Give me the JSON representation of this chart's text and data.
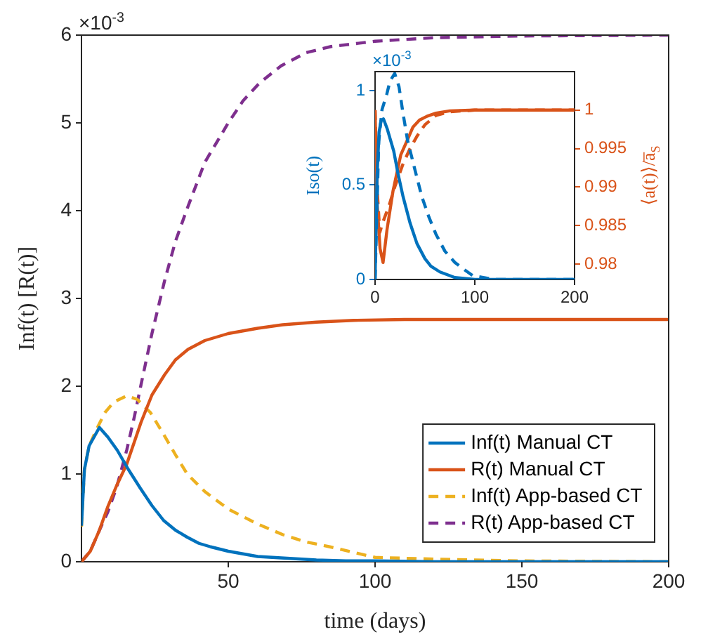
{
  "chart_data": [
    {
      "type": "line",
      "xlabel": "time (days)",
      "ylabel": "Inf(t) [R(t)]",
      "annotations": [
        "×10$^{-3}$"
      ],
      "xlim": [
        0,
        200
      ],
      "ylim": [
        0,
        6
      ],
      "xticks": [
        50,
        100,
        150,
        200
      ],
      "yticks": [
        0,
        1,
        2,
        3,
        4,
        5,
        6
      ],
      "grid": false,
      "legend": "bottom right",
      "series": [
        {
          "name": "Inf(t) Manual CT",
          "color": "#0072bd",
          "line_style": "solid",
          "x": [
            0,
            1,
            2.6,
            6.1,
            9,
            12.2,
            16,
            20,
            24,
            28,
            32,
            36,
            40,
            44,
            50,
            60,
            70,
            80,
            90,
            100,
            120,
            150,
            200
          ],
          "values": [
            0.41,
            1.05,
            1.32,
            1.53,
            1.42,
            1.27,
            1.05,
            0.84,
            0.64,
            0.47,
            0.36,
            0.28,
            0.21,
            0.17,
            0.12,
            0.06,
            0.04,
            0.02,
            0.01,
            0.01,
            0,
            0,
            0
          ]
        },
        {
          "name": "R(t) Manual CT",
          "color": "#d95319",
          "line_style": "solid",
          "x": [
            0,
            3,
            6,
            9,
            12,
            15.4,
            20.3,
            24,
            28.3,
            32,
            36.3,
            42,
            50,
            60,
            68.5,
            80,
            92.6,
            110,
            150,
            200
          ],
          "values": [
            0,
            0.12,
            0.35,
            0.63,
            0.87,
            1.11,
            1.59,
            1.9,
            2.13,
            2.3,
            2.42,
            2.52,
            2.6,
            2.66,
            2.7,
            2.73,
            2.75,
            2.76,
            2.76,
            2.76
          ]
        },
        {
          "name": "Inf(t) App-based CT",
          "color": "#edb120",
          "line_style": "dashed",
          "x": [
            0,
            1,
            2.6,
            5,
            8,
            11,
            15.4,
            19,
            23.5,
            28,
            32,
            36,
            42,
            50,
            60,
            68.5,
            76,
            84.6,
            100,
            120,
            150,
            200
          ],
          "values": [
            0.4,
            1.05,
            1.32,
            1.5,
            1.7,
            1.82,
            1.89,
            1.85,
            1.7,
            1.45,
            1.22,
            1.0,
            0.8,
            0.6,
            0.43,
            0.31,
            0.23,
            0.17,
            0.05,
            0.03,
            0.01,
            0
          ]
        },
        {
          "name": "R(t) App-based CT",
          "color": "#7e2f8e",
          "line_style": "dashed",
          "x": [
            0,
            3,
            6,
            9,
            12,
            15.4,
            18,
            20.3,
            24,
            28.3,
            32,
            36.3,
            42,
            50,
            55,
            60.5,
            68,
            76.5,
            85,
            92.6,
            100,
            120,
            150,
            200
          ],
          "values": [
            0,
            0.12,
            0.35,
            0.57,
            0.85,
            1.27,
            1.65,
            2.02,
            2.6,
            3.2,
            3.65,
            4.05,
            4.55,
            5.0,
            5.25,
            5.45,
            5.65,
            5.8,
            5.87,
            5.9,
            5.93,
            5.97,
            5.99,
            6.0
          ]
        }
      ]
    },
    {
      "type": "line",
      "ylabel": "Iso(t)",
      "y2label": "⟨a(t)⟩/a̅$_{S}$",
      "annotations": [
        "×10$^{-3}$"
      ],
      "xlim": [
        0,
        200
      ],
      "ylim": [
        0,
        1.1
      ],
      "y2lim": [
        0.978,
        1.005
      ],
      "xticks": [
        0,
        100,
        200
      ],
      "yticks": [
        0,
        0.5,
        1
      ],
      "y2ticks": [
        0.98,
        0.985,
        0.99,
        0.995,
        1
      ],
      "grid": false,
      "series": [
        {
          "color": "#0072bd",
          "line_style": "solid",
          "x": [
            0,
            2,
            4,
            6,
            8.4,
            12,
            18.7,
            23,
            28,
            35,
            42,
            50,
            56,
            65,
            80,
            100,
            200
          ],
          "values": [
            0,
            0.55,
            0.78,
            0.84,
            0.85,
            0.8,
            0.68,
            0.56,
            0.44,
            0.3,
            0.19,
            0.11,
            0.07,
            0.04,
            0.01,
            0,
            0
          ]
        },
        {
          "color": "#0072bd",
          "line_style": "dashed",
          "x": [
            0,
            3.7,
            7,
            11.7,
            15,
            19.7,
            24,
            28,
            32.8,
            40,
            46.8,
            54,
            61,
            70,
            80,
            90,
            98,
            120,
            200
          ],
          "values": [
            0,
            0.73,
            0.9,
            0.98,
            1.05,
            1.09,
            1.02,
            0.88,
            0.73,
            0.58,
            0.44,
            0.33,
            0.24,
            0.15,
            0.09,
            0.05,
            0.02,
            0,
            0
          ]
        },
        {
          "axis": "y2",
          "color": "#d95319",
          "line_style": "solid",
          "x": [
            0,
            2,
            5,
            8,
            12,
            18,
            25.8,
            32,
            38,
            44.5,
            52,
            61,
            75,
            100,
            200
          ],
          "values": [
            1.0,
            0.988,
            0.982,
            0.9802,
            0.9845,
            0.9895,
            0.9942,
            0.996,
            0.9978,
            0.9987,
            0.9992,
            0.9996,
            0.9999,
            1.0,
            1.0
          ]
        },
        {
          "axis": "y2",
          "color": "#d95319",
          "line_style": "dashed",
          "x": [
            0,
            2,
            4.7,
            8,
            14,
            20,
            28,
            35,
            42,
            50,
            61,
            75,
            100,
            200
          ],
          "values": [
            1.0,
            0.99,
            0.9841,
            0.9855,
            0.9876,
            0.9901,
            0.993,
            0.995,
            0.9966,
            0.9981,
            0.9993,
            0.9998,
            1.0,
            1.0
          ]
        }
      ]
    }
  ]
}
